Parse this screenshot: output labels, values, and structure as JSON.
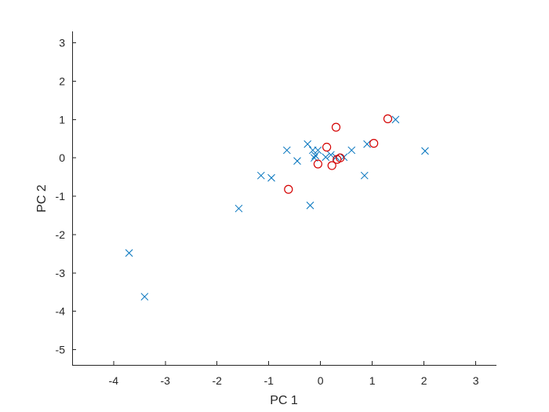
{
  "chart_data": {
    "type": "scatter",
    "title": "",
    "xlabel": "PC 1",
    "ylabel": "PC 2",
    "xlim": [
      -4.8,
      3.4
    ],
    "ylim": [
      -5.4,
      3.3
    ],
    "xticks": [
      -4,
      -3,
      -2,
      -1,
      0,
      1,
      2,
      3
    ],
    "yticks": [
      3,
      2,
      1,
      0,
      -1,
      -2,
      -3,
      -4,
      -5
    ],
    "xtick_labels": [
      "-4",
      "-3",
      "-2",
      "-1",
      "0",
      "1",
      "2",
      "3"
    ],
    "ytick_labels": [
      "3",
      "2",
      "1",
      "0",
      "-1",
      "-2",
      "-3",
      "-4",
      "-5"
    ],
    "grid": false,
    "series": [
      {
        "marker": "x",
        "color": "#0072BD",
        "x": [
          -3.7,
          -3.4,
          -1.58,
          -1.15,
          -0.95,
          -0.65,
          -0.45,
          -0.25,
          -0.2,
          -0.15,
          -0.1,
          -0.12,
          -0.05,
          0.1,
          0.2,
          0.3,
          0.45,
          0.6,
          0.85,
          0.9,
          1.45,
          2.02
        ],
        "y": [
          -2.48,
          -3.62,
          -1.32,
          -0.46,
          -0.52,
          0.2,
          -0.08,
          0.36,
          -1.24,
          0.2,
          0.06,
          0.0,
          0.2,
          0.02,
          0.08,
          0.02,
          0.02,
          0.2,
          -0.46,
          0.36,
          1.0,
          0.18
        ]
      },
      {
        "marker": "o",
        "color": "#D40000",
        "x": [
          -0.62,
          -0.05,
          0.12,
          0.22,
          0.3,
          0.32,
          0.38,
          1.03,
          1.3
        ],
        "y": [
          -0.82,
          -0.16,
          0.28,
          -0.2,
          0.8,
          -0.04,
          0.0,
          0.38,
          1.02
        ]
      }
    ]
  }
}
